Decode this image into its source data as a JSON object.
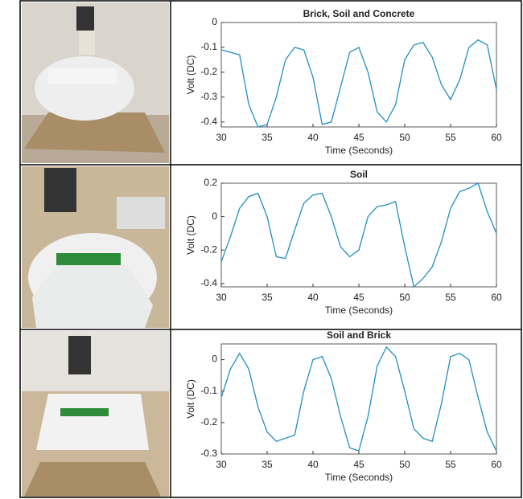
{
  "chart_data": [
    {
      "type": "line",
      "title": "Brick, Soil and Concrete",
      "xlabel": "Time (Seconds)",
      "ylabel": "Volt (DC)",
      "x": [
        30,
        31,
        32,
        33,
        34,
        35,
        36,
        37,
        38,
        39,
        40,
        41,
        42,
        43,
        44,
        45,
        46,
        47,
        48,
        49,
        50,
        51,
        52,
        53,
        54,
        55,
        56,
        57,
        58,
        59,
        60
      ],
      "values": [
        -0.11,
        -0.12,
        -0.13,
        -0.33,
        -0.42,
        -0.41,
        -0.3,
        -0.15,
        -0.1,
        -0.11,
        -0.22,
        -0.41,
        -0.4,
        -0.26,
        -0.12,
        -0.1,
        -0.2,
        -0.36,
        -0.4,
        -0.33,
        -0.15,
        -0.09,
        -0.08,
        -0.14,
        -0.25,
        -0.31,
        -0.23,
        -0.1,
        -0.07,
        -0.09,
        -0.27
      ],
      "color": "#1f8fc4",
      "xlim": [
        30,
        60
      ],
      "xticks": [
        30,
        35,
        40,
        45,
        50,
        55,
        60
      ],
      "ylim": [
        -0.42,
        0
      ],
      "yticks": [
        -0.4,
        -0.3,
        -0.2,
        -0.1,
        0
      ]
    },
    {
      "type": "line",
      "title": "Soil",
      "xlabel": "Time (Seconds)",
      "ylabel": "Volt (DC)",
      "x": [
        30,
        31,
        32,
        33,
        34,
        35,
        36,
        37,
        38,
        39,
        40,
        41,
        42,
        43,
        44,
        45,
        46,
        47,
        48,
        49,
        50,
        51,
        52,
        53,
        54,
        55,
        56,
        57,
        58,
        59,
        60
      ],
      "values": [
        -0.27,
        -0.12,
        0.05,
        0.12,
        0.14,
        0.0,
        -0.24,
        -0.25,
        -0.08,
        0.08,
        0.13,
        0.14,
        0.0,
        -0.18,
        -0.24,
        -0.2,
        0.0,
        0.06,
        0.07,
        0.09,
        -0.18,
        -0.42,
        -0.37,
        -0.3,
        -0.15,
        0.05,
        0.15,
        0.17,
        0.2,
        0.03,
        -0.1
      ],
      "color": "#1f8fc4",
      "xlim": [
        30,
        60
      ],
      "xticks": [
        30,
        35,
        40,
        45,
        50,
        55,
        60
      ],
      "ylim": [
        -0.42,
        0.2
      ],
      "yticks": [
        -0.4,
        -0.2,
        0,
        0.2
      ]
    },
    {
      "type": "line",
      "title": "Soil and Brick",
      "xlabel": "Time (Seconds)",
      "ylabel": "Volt (DC)",
      "x": [
        30,
        31,
        32,
        33,
        34,
        35,
        36,
        37,
        38,
        39,
        40,
        41,
        42,
        43,
        44,
        45,
        46,
        47,
        48,
        49,
        50,
        51,
        52,
        53,
        54,
        55,
        56,
        57,
        58,
        59,
        60
      ],
      "values": [
        -0.12,
        -0.03,
        0.02,
        -0.03,
        -0.15,
        -0.23,
        -0.26,
        -0.25,
        -0.24,
        -0.1,
        0.0,
        0.01,
        -0.06,
        -0.18,
        -0.28,
        -0.29,
        -0.18,
        -0.02,
        0.04,
        0.01,
        -0.1,
        -0.22,
        -0.25,
        -0.26,
        -0.14,
        0.01,
        0.02,
        0.0,
        -0.12,
        -0.23,
        -0.29
      ],
      "color": "#1f8fc4",
      "xlim": [
        30,
        60
      ],
      "xticks": [
        30,
        35,
        40,
        45,
        50,
        55,
        60
      ],
      "ylim": [
        -0.3,
        0.05
      ],
      "yticks": [
        -0.3,
        -0.2,
        -0.1,
        0
      ]
    }
  ]
}
